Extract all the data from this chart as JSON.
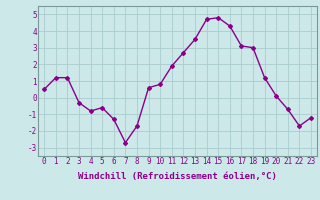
{
  "x": [
    0,
    1,
    2,
    3,
    4,
    5,
    6,
    7,
    8,
    9,
    10,
    11,
    12,
    13,
    14,
    15,
    16,
    17,
    18,
    19,
    20,
    21,
    22,
    23
  ],
  "y": [
    0.5,
    1.2,
    1.2,
    -0.3,
    -0.8,
    -0.6,
    -1.3,
    -2.7,
    -1.7,
    0.6,
    0.8,
    1.9,
    2.7,
    3.5,
    4.7,
    4.8,
    4.3,
    3.1,
    3.0,
    1.2,
    0.1,
    -0.7,
    -1.7,
    -1.2
  ],
  "line_color": "#8B008B",
  "marker": "D",
  "marker_size": 2,
  "bg_color": "#cce8e8",
  "grid_color": "#aacccc",
  "xlabel": "Windchill (Refroidissement éolien,°C)",
  "xlabel_color": "#8B008B",
  "tick_color": "#8B008B",
  "xlim": [
    -0.5,
    23.5
  ],
  "ylim": [
    -3.5,
    5.5
  ],
  "yticks": [
    -3,
    -2,
    -1,
    0,
    1,
    2,
    3,
    4,
    5
  ],
  "xticks": [
    0,
    1,
    2,
    3,
    4,
    5,
    6,
    7,
    8,
    9,
    10,
    11,
    12,
    13,
    14,
    15,
    16,
    17,
    18,
    19,
    20,
    21,
    22,
    23
  ],
  "tick_fontsize": 5.5,
  "xlabel_fontsize": 6.5,
  "linewidth": 1.0
}
